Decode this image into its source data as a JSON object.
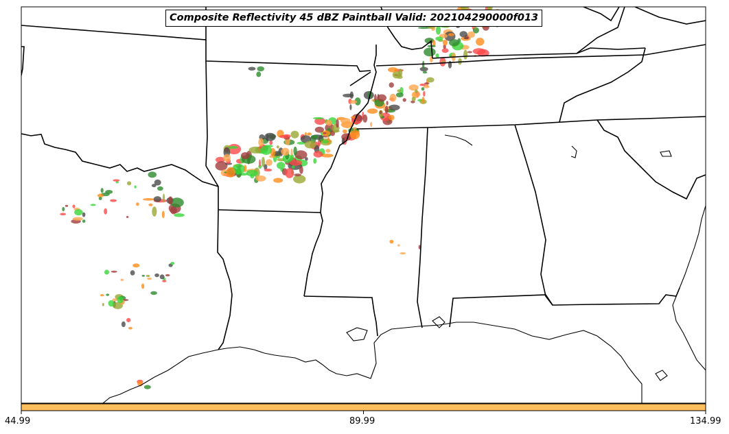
{
  "title": "Composite Reflectivity 45 dBZ Paintball Valid: 202104290000f013",
  "colorbar": {
    "color": "#ffbf5f",
    "tick_labels": [
      "44.99",
      "89.99",
      "134.99"
    ]
  },
  "colors": {
    "paintball": [
      "#ff4a4a",
      "#a33d3d",
      "#ff8c1a",
      "#3ad63a",
      "#2e8b2e",
      "#9aa832",
      "#4b4b4b",
      "#ffa64d"
    ],
    "state_lines": "#000000",
    "background": "#ffffff"
  }
}
